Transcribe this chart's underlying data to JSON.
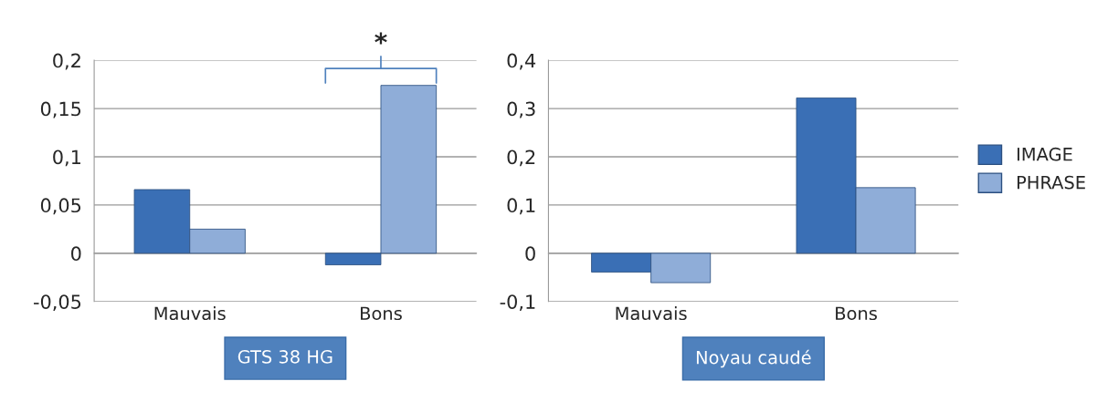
{
  "chart_data": [
    {
      "type": "bar",
      "xlabel": "GTS 38 HG",
      "categories": [
        "Mauvais",
        "Bons"
      ],
      "series": [
        {
          "color": "#3a6fb5",
          "values": [
            0.066,
            -0.012
          ]
        },
        {
          "color": "#8fadd8",
          "values": [
            0.025,
            0.174
          ]
        }
      ],
      "ylim": [
        -0.05,
        0.2
      ],
      "yticks": [
        {
          "value": -0.05,
          "label": "-0,05"
        },
        0,
        {
          "value": 0.05,
          "label": "0,05"
        },
        {
          "value": 0.1,
          "label": "0,1"
        },
        {
          "value": 0.15,
          "label": "0,15"
        },
        {
          "value": 0.2,
          "label": "0,2"
        }
      ],
      "grid": "y",
      "legend": false,
      "annotations": [
        {
          "text": "*",
          "x": "Bons",
          "y": 0.174
        }
      ]
    },
    {
      "type": "bar",
      "xlabel": "Noyau caudé",
      "categories": [
        "Mauvais",
        "Bons"
      ],
      "series": [
        {
          "name": "IMAGE",
          "color": "#3a6fb5",
          "values": [
            -0.039,
            0.322
          ]
        },
        {
          "name": "PHRASE",
          "color": "#8fadd8",
          "values": [
            -0.061,
            0.136
          ]
        }
      ],
      "ylim": [
        -0.1,
        0.4
      ],
      "yticks": [
        {
          "value": -0.1,
          "label": "-0,1"
        },
        0,
        {
          "value": 0.1,
          "label": "0,1"
        },
        {
          "value": 0.2,
          "label": "0,2"
        },
        {
          "value": 0.3,
          "label": "0,3"
        },
        {
          "value": 0.4,
          "label": "0,4"
        }
      ],
      "grid": "y",
      "legend": "right"
    }
  ]
}
